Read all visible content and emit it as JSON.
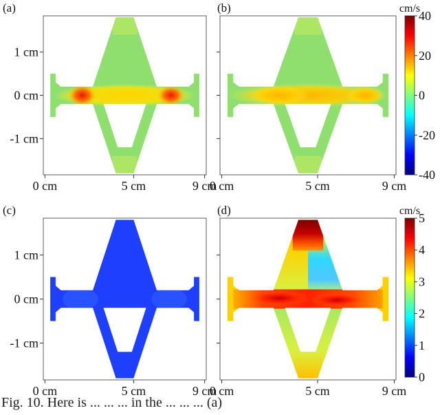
{
  "caption": "Fig. 10. Here is ... ... ... in the ... ... ... (a)",
  "panels": [
    {
      "letter": "(a)",
      "variant": "a"
    },
    {
      "letter": "(b)",
      "variant": "b"
    },
    {
      "letter": "(c)",
      "variant": "c"
    },
    {
      "letter": "(d)",
      "variant": "d"
    }
  ],
  "x_ticks": [
    {
      "value": 0,
      "label": "0 cm"
    },
    {
      "value": 5,
      "label": "5 cm"
    },
    {
      "value": 9,
      "label": "9 cm"
    }
  ],
  "y_ticks": [
    {
      "value": 1,
      "label": "1 cm"
    },
    {
      "value": 0,
      "label": "0 cm"
    },
    {
      "value": -1,
      "label": "-1 cm"
    }
  ],
  "colorbar_top": {
    "unit": "cm/s",
    "range": [
      -40,
      40
    ],
    "ticks": [
      {
        "value": 40,
        "label": "40"
      },
      {
        "value": 20,
        "label": "20"
      },
      {
        "value": 0,
        "label": "0"
      },
      {
        "value": -20,
        "label": "-20"
      },
      {
        "value": -40,
        "label": "-40"
      }
    ]
  },
  "colorbar_bottom": {
    "unit": "cm/s",
    "range": [
      0,
      5
    ],
    "ticks": [
      {
        "value": 5,
        "label": "5"
      },
      {
        "value": 4,
        "label": "4"
      },
      {
        "value": 3,
        "label": "3"
      },
      {
        "value": 2,
        "label": "2"
      },
      {
        "value": 1,
        "label": "1"
      },
      {
        "value": 0,
        "label": "0"
      }
    ]
  },
  "colors": {
    "jet": [
      "#00007f",
      "#0000ff",
      "#007fff",
      "#00ffff",
      "#7fff7f",
      "#ffff00",
      "#ff7f00",
      "#ff0000",
      "#7f0000"
    ],
    "background_green": "#8fdf6f",
    "uniform_blue": "#1f3fff"
  }
}
